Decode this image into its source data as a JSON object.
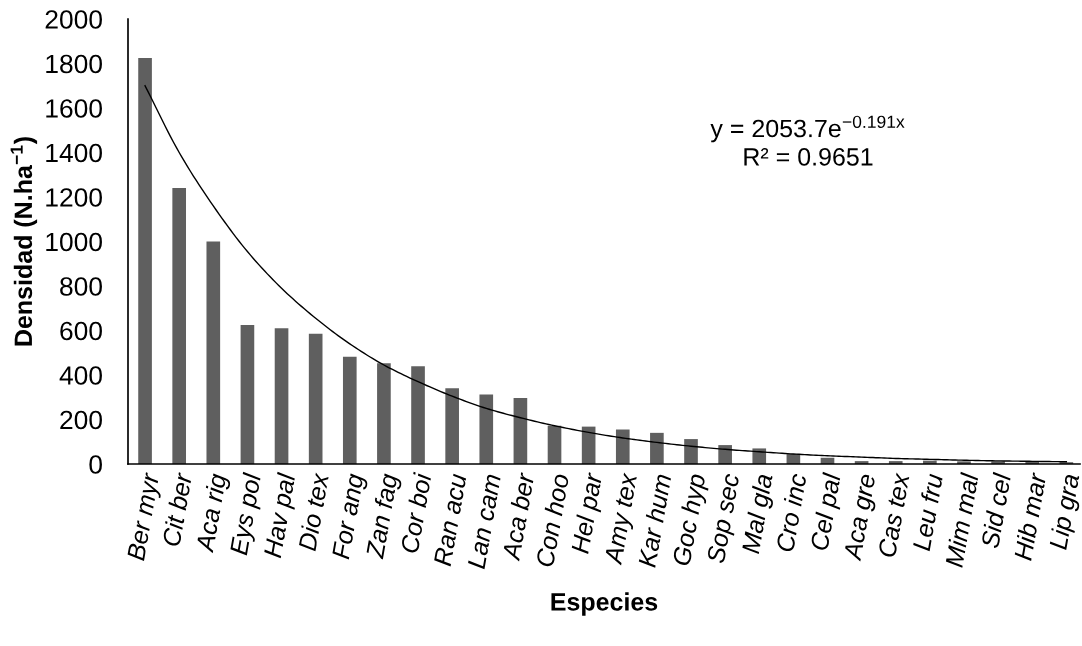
{
  "chart_data": {
    "type": "bar",
    "xlabel": "Especies",
    "ylabel": "Densidad (N.ha$^{−1}$)",
    "categories": [
      "Ber myr",
      "Cit ber",
      "Aca rig",
      "Eys pol",
      "Hav pal",
      "Dio tex",
      "For ang",
      "Zan fag",
      "Cor boi",
      "Ran acu",
      "Lan cam",
      "Aca ber",
      "Con hoo",
      "Hel par",
      "Amy tex",
      "Kar hum",
      "Goc hyp",
      "Sop sec",
      "Mal gla",
      "Cro inc",
      "Cel pal",
      "Aca gre",
      "Cas tex",
      "Leu fru",
      "Mim mal",
      "Sid cel",
      "Hib mar",
      "Lip gra"
    ],
    "series": [
      {
        "color": "#5f5f5f",
        "values": [
          1825,
          1240,
          1000,
          625,
          610,
          585,
          482,
          453,
          439,
          340,
          312,
          297,
          172,
          168,
          155,
          140,
          112,
          85,
          70,
          45,
          28,
          13,
          13,
          15,
          12,
          12,
          10,
          8
        ]
      },
      {
        "type": "line",
        "color": "#000000",
        "line_style": "solid",
        "values": [
          1700,
          1400,
          1160,
          955,
          790,
          655,
          540,
          445,
          370,
          305,
          250,
          208,
          172,
          142,
          117,
          97,
          80,
          66,
          55,
          45,
          37,
          31,
          25,
          21,
          17,
          14,
          12,
          10
        ]
      }
    ],
    "ylim": [
      0,
      2000
    ],
    "yticks": [
      0,
      200,
      400,
      600,
      800,
      1000,
      1200,
      1400,
      1600,
      1800,
      2000
    ],
    "annotations": [
      "y = 2053.7e$^{−0.191x}$",
      "R² = 0.9651"
    ]
  }
}
